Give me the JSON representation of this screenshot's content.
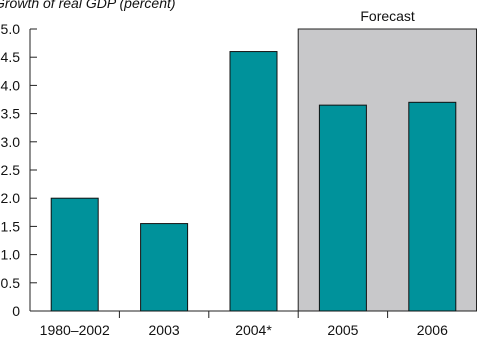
{
  "chart_data": {
    "type": "bar",
    "title": "Growth of real GDP (percent)",
    "categories": [
      "1980–2002",
      "2003",
      "2004*",
      "2005",
      "2006"
    ],
    "values": [
      2.0,
      1.55,
      4.6,
      3.65,
      3.7
    ],
    "ylim": [
      0,
      5.0
    ],
    "yticks": [
      "0",
      "0.5",
      "1.0",
      "1.5",
      "2.0",
      "2.5",
      "3.0",
      "3.5",
      "4.0",
      "4.5",
      "5.0"
    ],
    "grid": false,
    "forecast": {
      "label": "Forecast",
      "from_category": "2005"
    },
    "colors": {
      "bar": "#00929b",
      "forecast_bg": "#c8c8ca",
      "axis": "#222222"
    }
  }
}
